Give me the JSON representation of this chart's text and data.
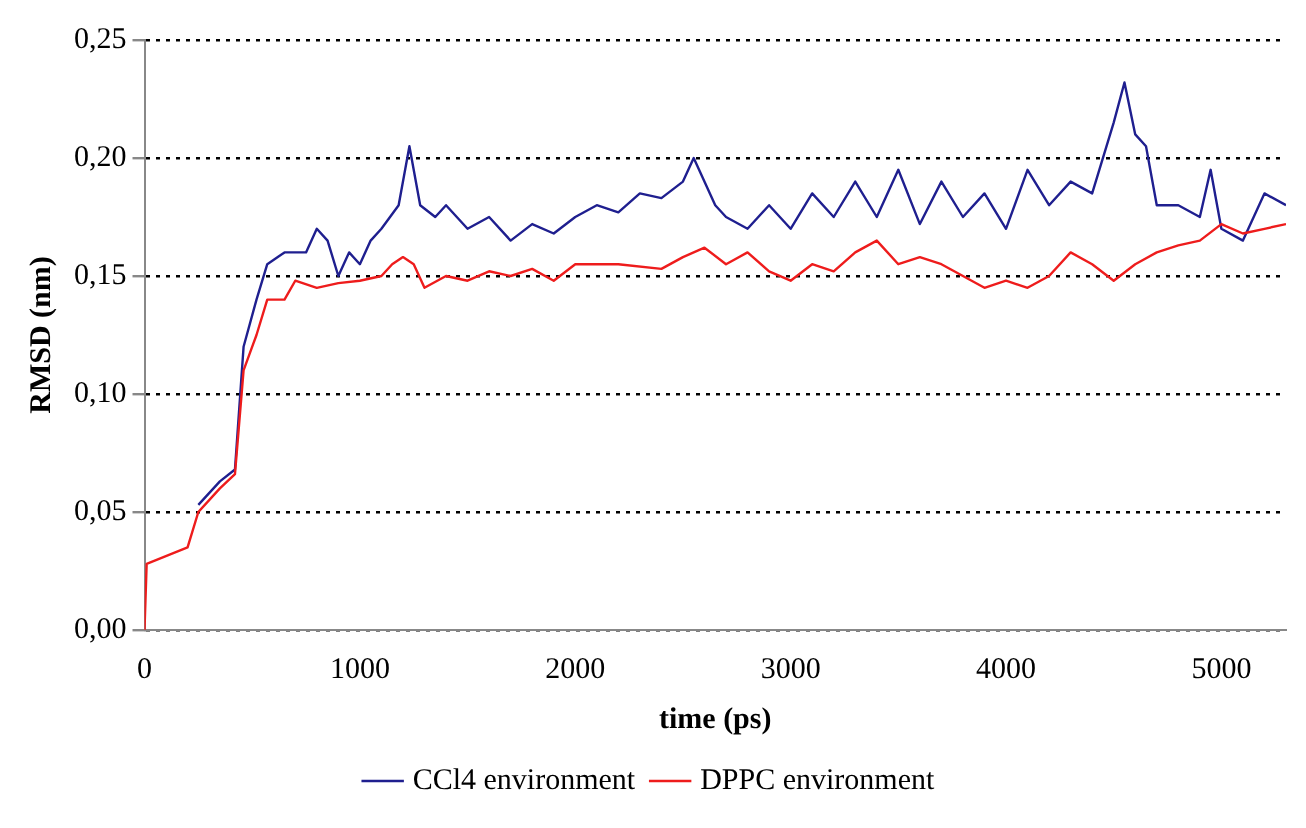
{
  "chart_data": {
    "type": "line",
    "xlabel": "time (ps)",
    "ylabel": "RMSD (nm)",
    "xlim": [
      0,
      5300
    ],
    "xticks": [
      0,
      1000,
      2000,
      3000,
      4000,
      5000
    ],
    "ylim": [
      0,
      0.25
    ],
    "yticks": [
      {
        "value": 0,
        "label": "0,00"
      },
      {
        "value": 0.05,
        "label": "0,05"
      },
      {
        "value": 0.1,
        "label": "0,10"
      },
      {
        "value": 0.15,
        "label": "0,15"
      },
      {
        "value": 0.2,
        "label": "0,20"
      },
      {
        "value": 0.25,
        "label": "0,25"
      }
    ],
    "grid": "y",
    "legend": "bottom",
    "marker": "none",
    "line_style": "solid",
    "series": [
      {
        "name": "CCl4 environment",
        "color": "#1f1f8f",
        "x": [
          250,
          350,
          420,
          460,
          520,
          570,
          650,
          750,
          800,
          850,
          900,
          950,
          1000,
          1050,
          1100,
          1180,
          1230,
          1280,
          1350,
          1400,
          1500,
          1600,
          1700,
          1800,
          1900,
          2000,
          2100,
          2200,
          2300,
          2400,
          2500,
          2550,
          2650,
          2700,
          2800,
          2900,
          3000,
          3100,
          3200,
          3300,
          3400,
          3500,
          3600,
          3700,
          3800,
          3900,
          4000,
          4100,
          4200,
          4300,
          4400,
          4500,
          4550,
          4600,
          4650,
          4700,
          4800,
          4900,
          4950,
          5000,
          5100,
          5200,
          5300
        ],
        "values": [
          0.053,
          0.063,
          0.068,
          0.12,
          0.14,
          0.155,
          0.16,
          0.16,
          0.17,
          0.165,
          0.15,
          0.16,
          0.155,
          0.165,
          0.17,
          0.18,
          0.205,
          0.18,
          0.175,
          0.18,
          0.17,
          0.175,
          0.165,
          0.172,
          0.168,
          0.175,
          0.18,
          0.177,
          0.185,
          0.183,
          0.19,
          0.2,
          0.18,
          0.175,
          0.17,
          0.18,
          0.17,
          0.185,
          0.175,
          0.19,
          0.175,
          0.195,
          0.172,
          0.19,
          0.175,
          0.185,
          0.17,
          0.195,
          0.18,
          0.19,
          0.185,
          0.215,
          0.232,
          0.21,
          0.205,
          0.18,
          0.18,
          0.175,
          0.195,
          0.17,
          0.165,
          0.185,
          0.18
        ]
      },
      {
        "name": "DPPC environment",
        "color": "#ee1c1c",
        "x": [
          0,
          10,
          200,
          250,
          350,
          420,
          460,
          520,
          570,
          650,
          700,
          800,
          900,
          1000,
          1100,
          1150,
          1200,
          1250,
          1300,
          1400,
          1500,
          1600,
          1700,
          1800,
          1900,
          2000,
          2200,
          2400,
          2500,
          2600,
          2700,
          2800,
          2900,
          3000,
          3100,
          3200,
          3300,
          3400,
          3500,
          3600,
          3700,
          3800,
          3900,
          4000,
          4100,
          4200,
          4300,
          4400,
          4500,
          4600,
          4700,
          4800,
          4900,
          5000,
          5100,
          5200,
          5300
        ],
        "values": [
          0,
          0.028,
          0.035,
          0.05,
          0.06,
          0.066,
          0.11,
          0.125,
          0.14,
          0.14,
          0.148,
          0.145,
          0.147,
          0.148,
          0.15,
          0.155,
          0.158,
          0.155,
          0.145,
          0.15,
          0.148,
          0.152,
          0.15,
          0.153,
          0.148,
          0.155,
          0.155,
          0.153,
          0.158,
          0.162,
          0.155,
          0.16,
          0.152,
          0.148,
          0.155,
          0.152,
          0.16,
          0.165,
          0.155,
          0.158,
          0.155,
          0.15,
          0.145,
          0.148,
          0.145,
          0.15,
          0.16,
          0.155,
          0.148,
          0.155,
          0.16,
          0.163,
          0.165,
          0.172,
          0.168,
          0.17,
          0.172
        ]
      }
    ]
  }
}
